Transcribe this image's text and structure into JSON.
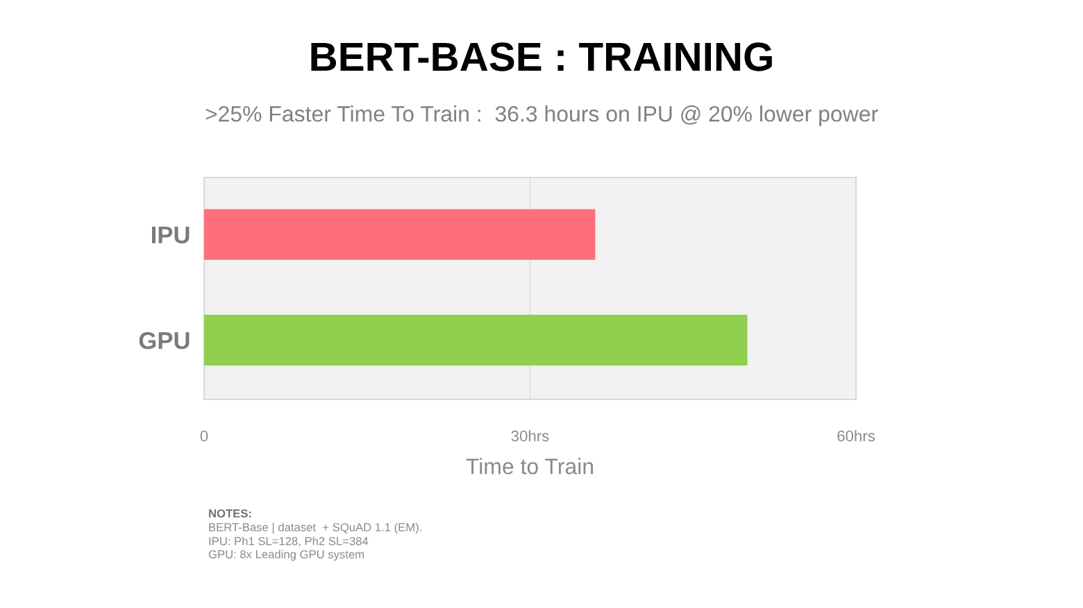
{
  "chart_data": {
    "type": "bar",
    "orientation": "horizontal",
    "title": "BERT-BASE : TRAINING",
    "subtitle": ">25% Faster Time To Train :  36.3 hours on IPU @ 20% lower power",
    "xlabel": "Time to Train",
    "categories": [
      "IPU",
      "GPU"
    ],
    "values": [
      36,
      50
    ],
    "colors": [
      "#ff6f7b",
      "#8fd14f"
    ],
    "xlim": [
      0,
      60
    ],
    "xticks": [
      0,
      {
        "value": 30,
        "label": "30hrs"
      },
      {
        "value": 60,
        "label": "60hrs"
      }
    ],
    "grid": "x",
    "annotations": [
      "NOTES:",
      "BERT-Base | dataset  + SQuAD 1.1 (EM).",
      "IPU: Ph1 SL=128, Ph2 SL=384",
      "GPU: 8x Leading GPU system"
    ]
  }
}
